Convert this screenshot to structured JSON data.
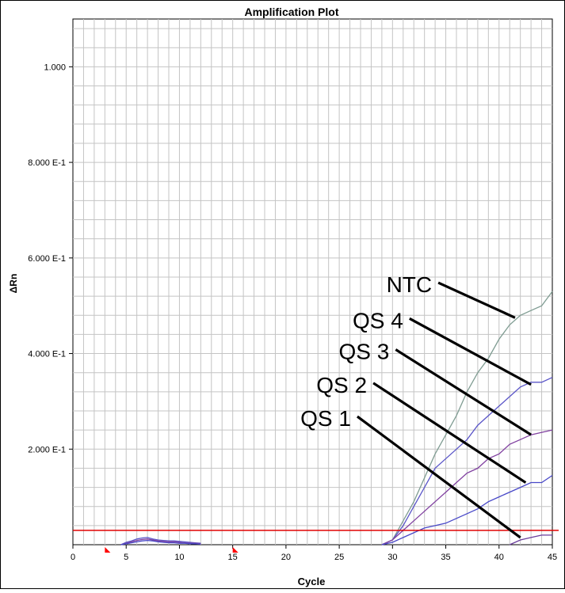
{
  "chart_data": {
    "type": "line",
    "title": "Amplification Plot",
    "xlabel": "Cycle",
    "ylabel": "ΔRn",
    "xlim": [
      0,
      45
    ],
    "ylim": [
      0,
      1.1
    ],
    "grid": true,
    "x_ticks": [
      0,
      5,
      10,
      15,
      20,
      25,
      30,
      35,
      40,
      45
    ],
    "y_ticks": [
      {
        "value": 0.2,
        "label": "2.000 E-1"
      },
      {
        "value": 0.4,
        "label": "4.000 E-1"
      },
      {
        "value": 0.6,
        "label": "6.000 E-1"
      },
      {
        "value": 0.8,
        "label": "8.000 E-1"
      },
      {
        "value": 1.0,
        "label": "1.000"
      }
    ],
    "threshold": 0.03,
    "baseline_markers": [
      3,
      15
    ],
    "series": [
      {
        "name": "NTC",
        "color": "#7f9c92",
        "x": [
          29,
          30,
          31,
          32,
          33,
          34,
          35,
          36,
          37,
          38,
          39,
          40,
          41,
          42,
          43,
          44,
          45
        ],
        "y": [
          0,
          0.01,
          0.05,
          0.09,
          0.14,
          0.19,
          0.23,
          0.27,
          0.32,
          0.36,
          0.39,
          0.43,
          0.46,
          0.48,
          0.49,
          0.5,
          0.53
        ]
      },
      {
        "name": "QS 4",
        "color": "#5a55c8",
        "x": [
          29,
          30,
          31,
          32,
          33,
          34,
          35,
          36,
          37,
          38,
          39,
          40,
          41,
          42,
          43,
          44,
          45
        ],
        "y": [
          0,
          0.01,
          0.04,
          0.08,
          0.12,
          0.16,
          0.18,
          0.2,
          0.22,
          0.25,
          0.27,
          0.29,
          0.31,
          0.33,
          0.34,
          0.34,
          0.35
        ]
      },
      {
        "name": "QS 3",
        "color": "#8040a0",
        "x": [
          29,
          30,
          31,
          32,
          33,
          34,
          35,
          36,
          37,
          38,
          39,
          40,
          41,
          42,
          43,
          44,
          45
        ],
        "y": [
          0,
          0.01,
          0.03,
          0.05,
          0.07,
          0.09,
          0.11,
          0.13,
          0.15,
          0.16,
          0.18,
          0.19,
          0.21,
          0.22,
          0.23,
          0.235,
          0.24
        ]
      },
      {
        "name": "QS 2",
        "color": "#4848c8",
        "x": [
          29,
          30,
          31,
          32,
          33,
          34,
          35,
          36,
          37,
          38,
          39,
          40,
          41,
          42,
          43,
          44,
          45
        ],
        "y": [
          0,
          0.005,
          0.015,
          0.025,
          0.035,
          0.04,
          0.045,
          0.055,
          0.065,
          0.075,
          0.09,
          0.1,
          0.11,
          0.12,
          0.13,
          0.13,
          0.145
        ]
      },
      {
        "name": "QS 1",
        "color": "#6a3c9c",
        "x": [
          41,
          42,
          43,
          44,
          45
        ],
        "y": [
          0,
          0.01,
          0.015,
          0.02,
          0.02
        ]
      },
      {
        "name": "",
        "color": "#5a55c8",
        "x": [
          4.5,
          5,
          5.5,
          6,
          6.5,
          7,
          7.5,
          8,
          8.5,
          9,
          9.5,
          10,
          10.5,
          11,
          11.5,
          12
        ],
        "y": [
          0,
          0.005,
          0.008,
          0.012,
          0.014,
          0.015,
          0.012,
          0.01,
          0.009,
          0.008,
          0.008,
          0.007,
          0.006,
          0.005,
          0.004,
          0.003
        ]
      },
      {
        "name": "",
        "color": "#8040a0",
        "x": [
          4.5,
          5,
          5.5,
          6,
          6.5,
          7,
          7.5,
          8,
          8.5,
          9,
          9.5,
          10,
          10.5,
          11,
          11.5,
          12
        ],
        "y": [
          0,
          0.003,
          0.006,
          0.009,
          0.011,
          0.012,
          0.01,
          0.008,
          0.007,
          0.006,
          0.006,
          0.005,
          0.004,
          0.003,
          0.003,
          0.002
        ]
      },
      {
        "name": "",
        "color": "#4848c8",
        "x": [
          4.5,
          5,
          5.5,
          6,
          6.5,
          7,
          7.5,
          8,
          8.5,
          9,
          9.5,
          10,
          10.5,
          11,
          11.5,
          12
        ],
        "y": [
          0,
          0.002,
          0.004,
          0.006,
          0.008,
          0.009,
          0.008,
          0.006,
          0.005,
          0.004,
          0.004,
          0.003,
          0.003,
          0.002,
          0.002,
          0.001
        ]
      }
    ],
    "annotations": [
      {
        "text": "NTC",
        "x": 34.0,
        "y": 0.545,
        "tx": 41.5,
        "ty": 0.475
      },
      {
        "text": "QS 4",
        "x": 31.3,
        "y": 0.47,
        "tx": 43.0,
        "ty": 0.335
      },
      {
        "text": "QS 3",
        "x": 30.0,
        "y": 0.405,
        "tx": 43.0,
        "ty": 0.23
      },
      {
        "text": "QS 2",
        "x": 27.9,
        "y": 0.335,
        "tx": 42.5,
        "ty": 0.13
      },
      {
        "text": "QS 1",
        "x": 26.4,
        "y": 0.265,
        "tx": 42.0,
        "ty": 0.015
      }
    ]
  }
}
